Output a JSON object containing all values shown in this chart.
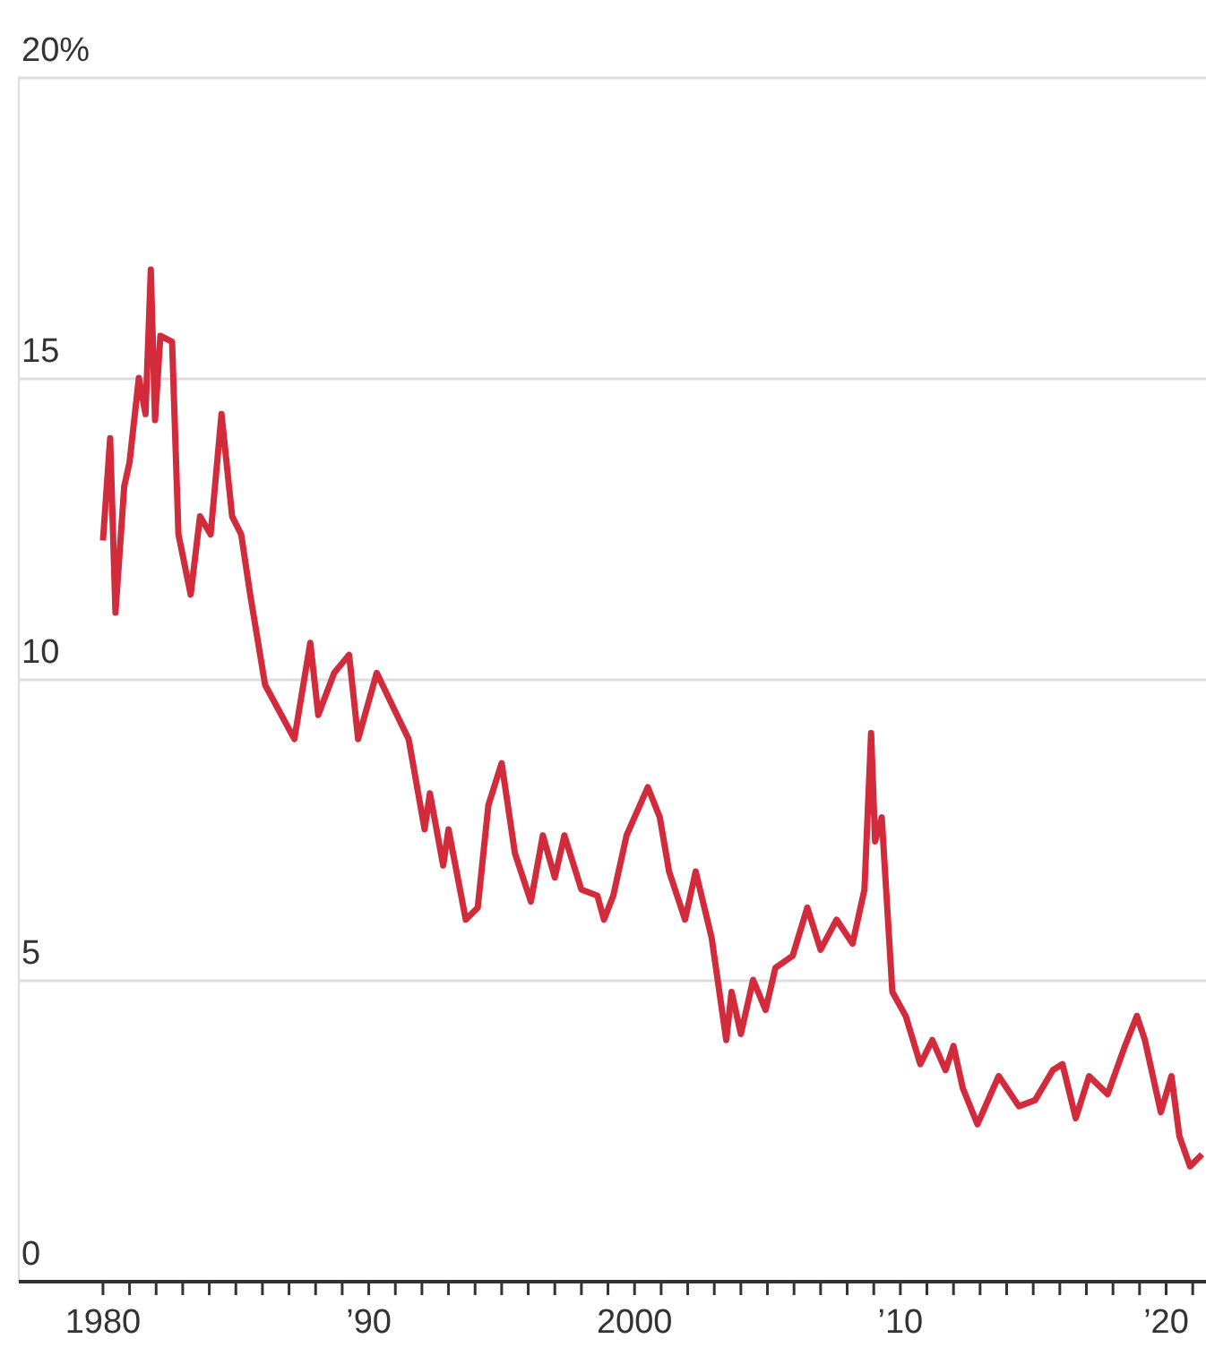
{
  "chart_data": {
    "type": "line",
    "x": [
      1980.0,
      1980.27,
      1980.47,
      1980.8,
      1981.0,
      1981.35,
      1981.6,
      1981.8,
      1981.96,
      1982.16,
      1982.6,
      1982.84,
      1983.3,
      1983.65,
      1984.05,
      1984.46,
      1984.86,
      1985.2,
      1985.54,
      1986.1,
      1987.2,
      1987.8,
      1988.1,
      1988.7,
      1989.26,
      1989.6,
      1990.3,
      1990.95,
      1991.5,
      1992.1,
      1992.3,
      1992.8,
      1993.0,
      1993.65,
      1994.1,
      1994.5,
      1995.0,
      1995.5,
      1996.1,
      1996.55,
      1997.0,
      1997.36,
      1998.0,
      1998.6,
      1998.85,
      1999.2,
      1999.7,
      2000.5,
      2000.95,
      2001.3,
      2001.9,
      2002.3,
      2002.9,
      2003.45,
      2003.65,
      2004.0,
      2004.46,
      2004.93,
      2005.3,
      2005.95,
      2006.5,
      2007.0,
      2007.6,
      2008.2,
      2008.65,
      2008.9,
      2009.05,
      2009.3,
      2009.7,
      2010.2,
      2010.75,
      2011.2,
      2011.7,
      2012.0,
      2012.35,
      2012.9,
      2013.7,
      2014.46,
      2015.07,
      2015.74,
      2016.1,
      2016.6,
      2017.1,
      2017.8,
      2018.45,
      2018.9,
      2019.2,
      2019.8,
      2020.2,
      2020.5,
      2020.9,
      2021.35
    ],
    "series": [
      {
        "color": "#d22b3b",
        "values": [
          12.3,
          14.0,
          11.1,
          13.2,
          13.6,
          15.0,
          14.4,
          16.8,
          14.3,
          15.7,
          15.6,
          12.4,
          11.4,
          12.7,
          12.4,
          14.4,
          12.7,
          12.4,
          11.4,
          9.9,
          9.0,
          10.6,
          9.4,
          10.1,
          10.4,
          9.0,
          10.1,
          9.5,
          9.0,
          7.5,
          8.1,
          6.9,
          7.5,
          6.0,
          6.2,
          7.9,
          8.6,
          7.1,
          6.3,
          7.4,
          6.7,
          7.4,
          6.5,
          6.4,
          6.0,
          6.4,
          7.4,
          8.2,
          7.7,
          6.8,
          6.0,
          6.8,
          5.7,
          4.0,
          4.8,
          4.1,
          5.0,
          4.5,
          5.2,
          5.4,
          6.2,
          5.5,
          6.0,
          5.6,
          6.5,
          9.1,
          7.3,
          7.7,
          4.8,
          4.4,
          3.6,
          4.0,
          3.5,
          3.9,
          3.2,
          2.6,
          3.4,
          2.9,
          3.0,
          3.5,
          3.6,
          2.7,
          3.4,
          3.1,
          3.9,
          4.4,
          4.0,
          2.8,
          3.4,
          2.4,
          1.9,
          2.1
        ]
      }
    ],
    "xlim": [
      1976.8,
      2021.5
    ],
    "xticks": [
      {
        "value": 1980,
        "label": "1980"
      },
      {
        "value": 1981,
        "label": null
      },
      {
        "value": 1982,
        "label": null
      },
      {
        "value": 1983,
        "label": null
      },
      {
        "value": 1984,
        "label": null
      },
      {
        "value": 1985,
        "label": null
      },
      {
        "value": 1986,
        "label": null
      },
      {
        "value": 1987,
        "label": null
      },
      {
        "value": 1988,
        "label": null
      },
      {
        "value": 1989,
        "label": null
      },
      {
        "value": 1990,
        "label": "’90"
      },
      {
        "value": 1991,
        "label": null
      },
      {
        "value": 1992,
        "label": null
      },
      {
        "value": 1993,
        "label": null
      },
      {
        "value": 1994,
        "label": null
      },
      {
        "value": 1995,
        "label": null
      },
      {
        "value": 1996,
        "label": null
      },
      {
        "value": 1997,
        "label": null
      },
      {
        "value": 1998,
        "label": null
      },
      {
        "value": 1999,
        "label": null
      },
      {
        "value": 2000,
        "label": "2000"
      },
      {
        "value": 2001,
        "label": null
      },
      {
        "value": 2002,
        "label": null
      },
      {
        "value": 2003,
        "label": null
      },
      {
        "value": 2004,
        "label": null
      },
      {
        "value": 2005,
        "label": null
      },
      {
        "value": 2006,
        "label": null
      },
      {
        "value": 2007,
        "label": null
      },
      {
        "value": 2008,
        "label": null
      },
      {
        "value": 2009,
        "label": null
      },
      {
        "value": 2010,
        "label": "’10"
      },
      {
        "value": 2011,
        "label": null
      },
      {
        "value": 2012,
        "label": null
      },
      {
        "value": 2013,
        "label": null
      },
      {
        "value": 2014,
        "label": null
      },
      {
        "value": 2015,
        "label": null
      },
      {
        "value": 2016,
        "label": null
      },
      {
        "value": 2017,
        "label": null
      },
      {
        "value": 2018,
        "label": null
      },
      {
        "value": 2019,
        "label": null
      },
      {
        "value": 2020,
        "label": "’20"
      },
      {
        "value": 2021,
        "label": null
      }
    ],
    "ylim": [
      0,
      20
    ],
    "yticks": [
      0,
      5,
      10,
      15,
      {
        "value": 20,
        "label": "20%"
      }
    ],
    "grid": "y",
    "marker": "none",
    "line_style": "solid"
  }
}
